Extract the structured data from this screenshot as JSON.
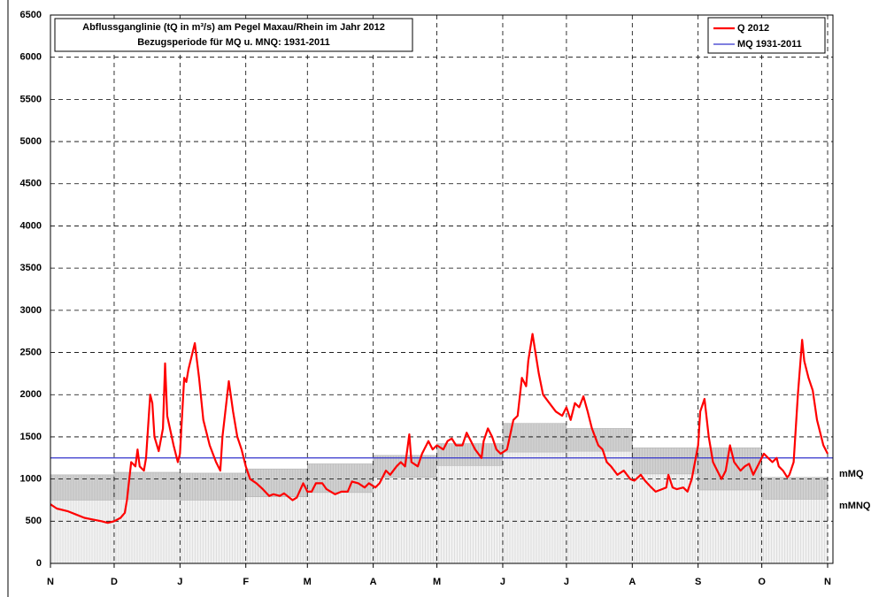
{
  "chart_data": {
    "type": "line",
    "title": "Abflussganglinie (tQ in m³/s) am Pegel Maxau/Rhein im Jahr 2012",
    "subtitle": "Bezugsperiode für MQ u. MNQ: 1931-2011",
    "xlim": [
      0,
      366
    ],
    "xticks": [
      {
        "value": 0,
        "label": "N"
      },
      {
        "value": 30,
        "label": "D"
      },
      {
        "value": 61,
        "label": "J"
      },
      {
        "value": 92,
        "label": "F"
      },
      {
        "value": 121,
        "label": "M"
      },
      {
        "value": 152,
        "label": "A"
      },
      {
        "value": 182,
        "label": "M"
      },
      {
        "value": 213,
        "label": "J"
      },
      {
        "value": 243,
        "label": "J"
      },
      {
        "value": 274,
        "label": "A"
      },
      {
        "value": 305,
        "label": "S"
      },
      {
        "value": 335,
        "label": "O"
      },
      {
        "value": 366,
        "label": "N"
      }
    ],
    "ylim": [
      0,
      6500
    ],
    "yticks": [
      0,
      500,
      1000,
      1500,
      2000,
      2500,
      3000,
      3500,
      4000,
      4500,
      5000,
      5500,
      6000,
      6500
    ],
    "grid": true,
    "series": [
      {
        "name": "Q 2012",
        "color": "#ff0000",
        "x": [
          0,
          3,
          8,
          12,
          16,
          20,
          24,
          27,
          30,
          33,
          35,
          36,
          38,
          40,
          41,
          42,
          44,
          45,
          47,
          48,
          49,
          51,
          53,
          54,
          55,
          58,
          60,
          61,
          63,
          64,
          65,
          68,
          70,
          72,
          75,
          78,
          80,
          81,
          84,
          86,
          88,
          90,
          92,
          94,
          97,
          100,
          103,
          105,
          108,
          110,
          114,
          116,
          119,
          121,
          123,
          125,
          128,
          130,
          134,
          137,
          140,
          142,
          145,
          148,
          150,
          153,
          155,
          158,
          160,
          163,
          165,
          167,
          169,
          170,
          173,
          175,
          178,
          180,
          182,
          185,
          187,
          189,
          191,
          194,
          196,
          198,
          200,
          203,
          204,
          206,
          208,
          210,
          212,
          215,
          218,
          220,
          222,
          224,
          225,
          227,
          230,
          232,
          235,
          238,
          241,
          243,
          245,
          247,
          249,
          251,
          253,
          255,
          258,
          260,
          262,
          264,
          267,
          270,
          273,
          275,
          278,
          280,
          283,
          285,
          288,
          290,
          291,
          293,
          295,
          298,
          300,
          302,
          305,
          306,
          308,
          310,
          312,
          314,
          316,
          318,
          320,
          322,
          325,
          327,
          329,
          331,
          334,
          336,
          338,
          340,
          342,
          343,
          345,
          347,
          348,
          350,
          352,
          354,
          355,
          357,
          359,
          361,
          364,
          366
        ],
        "values": [
          700,
          650,
          620,
          580,
          540,
          520,
          500,
          480,
          500,
          540,
          600,
          750,
          1200,
          1150,
          1350,
          1150,
          1100,
          1250,
          2000,
          1900,
          1500,
          1330,
          1600,
          2370,
          1750,
          1400,
          1200,
          1300,
          2200,
          2150,
          2300,
          2610,
          2200,
          1700,
          1400,
          1200,
          1100,
          1500,
          2160,
          1800,
          1500,
          1350,
          1150,
          1000,
          950,
          880,
          800,
          820,
          800,
          830,
          750,
          780,
          950,
          850,
          850,
          950,
          950,
          880,
          820,
          850,
          850,
          970,
          950,
          900,
          950,
          900,
          950,
          1100,
          1050,
          1150,
          1200,
          1150,
          1530,
          1200,
          1150,
          1300,
          1450,
          1350,
          1400,
          1350,
          1450,
          1480,
          1400,
          1400,
          1550,
          1450,
          1350,
          1250,
          1450,
          1600,
          1500,
          1350,
          1300,
          1350,
          1700,
          1750,
          2200,
          2100,
          2400,
          2720,
          2250,
          2000,
          1900,
          1800,
          1750,
          1850,
          1700,
          1900,
          1850,
          1980,
          1800,
          1600,
          1400,
          1350,
          1200,
          1150,
          1050,
          1100,
          1000,
          980,
          1050,
          980,
          900,
          850,
          880,
          900,
          1050,
          900,
          880,
          900,
          850,
          1000,
          1400,
          1800,
          1950,
          1500,
          1200,
          1100,
          1000,
          1100,
          1400,
          1200,
          1100,
          1150,
          1180,
          1050,
          1200,
          1300,
          1250,
          1200,
          1250,
          1150,
          1100,
          1020,
          1050,
          1200,
          2000,
          2650,
          2400,
          2200,
          2050,
          1700,
          1400,
          1300
        ]
      },
      {
        "name": "MQ 1931-2011",
        "color": "#3333cc",
        "values": [
          1250
        ]
      }
    ],
    "mmq": {
      "name": "mMQ",
      "values": [
        1050,
        1080,
        1070,
        1120,
        1180,
        1280,
        1420,
        1660,
        1600,
        1370,
        1370,
        1020
      ]
    },
    "mmnq": {
      "name": "mMNQ",
      "values": [
        750,
        760,
        750,
        790,
        840,
        1020,
        1160,
        1320,
        1330,
        1060,
        870,
        760
      ]
    }
  }
}
